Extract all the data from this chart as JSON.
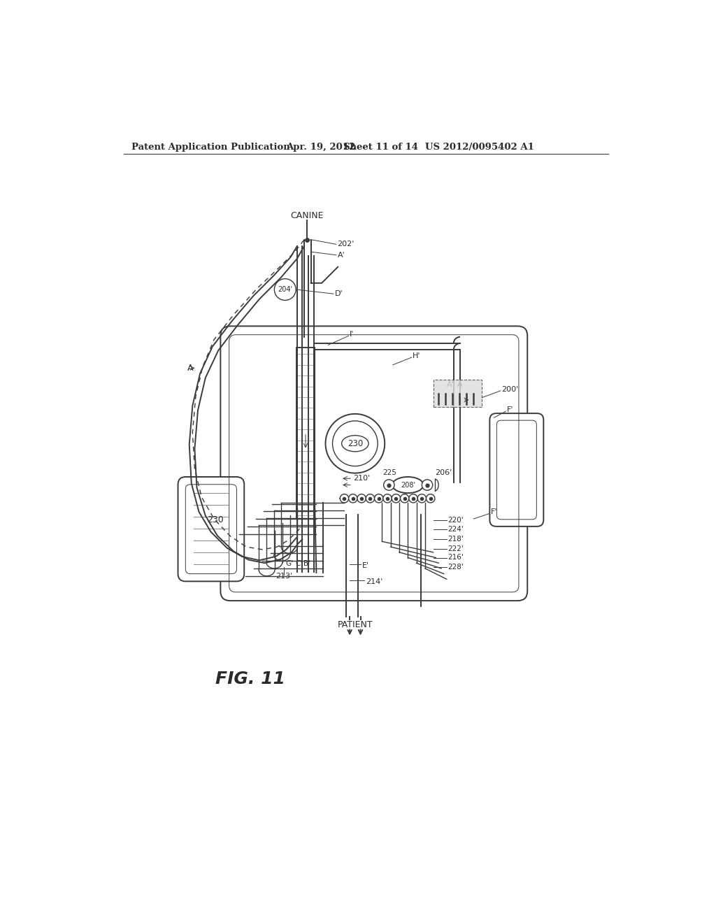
{
  "background_color": "#ffffff",
  "header_text": "Patent Application Publication",
  "header_date": "Apr. 19, 2012",
  "header_sheet": "Sheet 11 of 14",
  "header_patent": "US 2012/0095402 A1",
  "fig_label": "FIG. 11",
  "line_color": "#3a3a3a",
  "label_color": "#2a2a2a"
}
